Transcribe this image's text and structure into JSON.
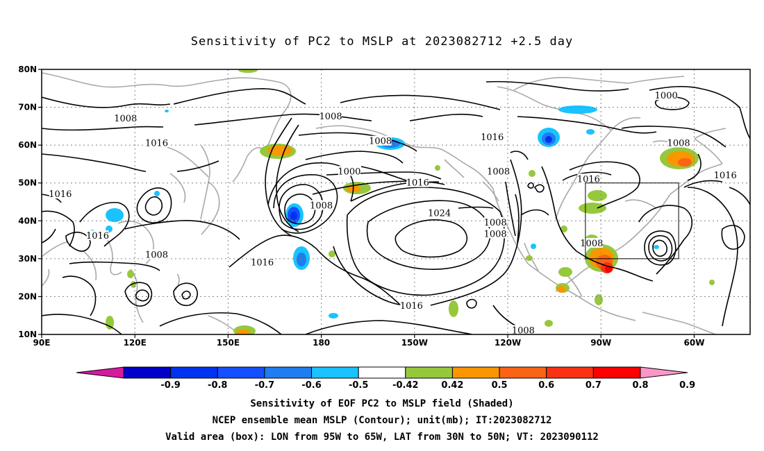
{
  "title": "Sensitivity of PC2 to MSLP at 2023082712 +2.5 day",
  "map": {
    "lon_labels": [
      "90E",
      "120E",
      "150E",
      "180",
      "150W",
      "120W",
      "90W",
      "60W"
    ],
    "lat_labels": [
      "80N",
      "70N",
      "60N",
      "50N",
      "40N",
      "30N",
      "20N",
      "10N"
    ],
    "contour_labels": [
      {
        "text": "1008",
        "lon": 117,
        "lat": 67
      },
      {
        "text": "1008",
        "lon": 183,
        "lat": 67.5
      },
      {
        "text": "1016",
        "lon": 127,
        "lat": 60.5
      },
      {
        "text": "1008",
        "lon": -161,
        "lat": 61
      },
      {
        "text": "1016",
        "lon": -125,
        "lat": 62
      },
      {
        "text": "1000",
        "lon": -69,
        "lat": 73
      },
      {
        "text": "1008",
        "lon": -180,
        "lat": 44
      },
      {
        "text": "1000",
        "lon": -171,
        "lat": 53
      },
      {
        "text": "1016",
        "lon": -149,
        "lat": 50
      },
      {
        "text": "1024",
        "lon": -142,
        "lat": 42
      },
      {
        "text": "1008",
        "lon": -123,
        "lat": 53
      },
      {
        "text": "1016",
        "lon": -94,
        "lat": 51
      },
      {
        "text": "1008",
        "lon": -65,
        "lat": 60.5
      },
      {
        "text": "1016",
        "lon": -50,
        "lat": 52
      },
      {
        "text": "1016",
        "lon": 96,
        "lat": 47
      },
      {
        "text": "1016",
        "lon": 108,
        "lat": 36
      },
      {
        "text": "1008",
        "lon": 127,
        "lat": 31
      },
      {
        "text": "1016",
        "lon": 161,
        "lat": 29
      },
      {
        "text": "1008",
        "lon": -124,
        "lat": 39.5
      },
      {
        "text": "1008",
        "lon": -124,
        "lat": 36.5
      },
      {
        "text": "1008",
        "lon": -93,
        "lat": 34
      },
      {
        "text": "1016",
        "lon": -151,
        "lat": 17.5
      },
      {
        "text": "1008",
        "lon": -115,
        "lat": 11
      }
    ],
    "box": {
      "lon_w": -95,
      "lon_e": -65,
      "lat_s": 30,
      "lat_n": 50
    }
  },
  "colorbar": {
    "labels": [
      "-0.9",
      "-0.8",
      "-0.7",
      "-0.6",
      "-0.5",
      "-0.42",
      "0.42",
      "0.5",
      "0.6",
      "0.7",
      "0.8",
      "0.9"
    ],
    "colors": [
      "#d61aa0",
      "#0000c8",
      "#0033f0",
      "#1450ff",
      "#1e7df0",
      "#19c3ff",
      "#ffffff",
      "#96c83c",
      "#fa9600",
      "#fa6414",
      "#fa3214",
      "#ff0000",
      "#fa96c8"
    ]
  },
  "caption": {
    "line1": "Sensitivity of EOF PC2 to MSLP field (Shaded)",
    "line2": "NCEP ensemble mean MSLP (Contour); unit(mb); IT:2023082712",
    "line3": "Valid area (box): LON from 95W to 65W, LAT from 30N to 50N; VT: 2023090112"
  }
}
